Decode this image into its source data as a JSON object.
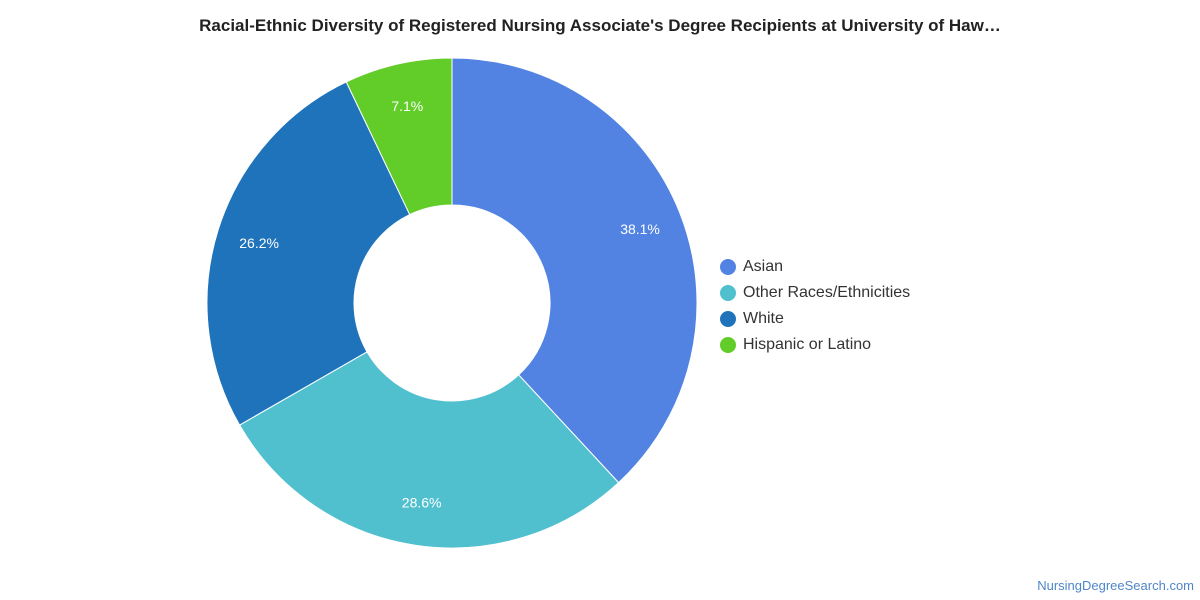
{
  "chart_data": {
    "type": "pie",
    "title": "Racial-Ethnic Diversity of Registered Nursing Associate's Degree Recipients at University of Haw…",
    "donut": true,
    "legend_position": "right",
    "slices": [
      {
        "name": "Asian",
        "value": 38.1,
        "label": "38.1%",
        "color": "#5283e3"
      },
      {
        "name": "Other Races/Ethnicities",
        "value": 28.6,
        "label": "28.6%",
        "color": "#50c0cf"
      },
      {
        "name": "White",
        "value": 26.2,
        "label": "26.2%",
        "color": "#1f73bb"
      },
      {
        "name": "Hispanic or Latino",
        "value": 7.1,
        "label": "7.1%",
        "color": "#62cc28"
      }
    ]
  },
  "watermark": "NursingDegreeSearch.com"
}
